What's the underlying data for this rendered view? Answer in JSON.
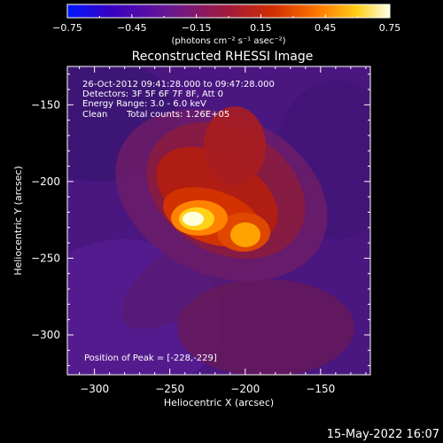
{
  "chart_data": {
    "type": "heatmap",
    "title": "Reconstructed RHESSI Image",
    "xlabel": "Heliocentric X (arcsec)",
    "ylabel": "Heliocentric Y (arcsec)",
    "xlim": [
      -318,
      -117
    ],
    "ylim": [
      -326,
      -125
    ],
    "x_ticks": [
      -300,
      -250,
      -200,
      -150
    ],
    "y_ticks": [
      -150,
      -200,
      -250,
      -300
    ],
    "colorbar": {
      "range": [
        -0.75,
        0.75
      ],
      "ticks": [
        -0.75,
        -0.45,
        -0.15,
        0.15,
        0.45,
        0.75
      ],
      "unit_label": "(photons cm⁻² s⁻¹ asec⁻²)",
      "colormap": [
        "#0018ff",
        "#3a00c0",
        "#6a1890",
        "#a21a3a",
        "#d22e00",
        "#ff7a00",
        "#ffd01a",
        "#ffffe8"
      ]
    },
    "annotations": {
      "time_range": "26-Oct-2012 09:41:28.000 to 09:47:28.000",
      "detectors": "Detectors: 3F 5F 6F 7F 8F, Att 0",
      "energy": "Energy Range: 3.0 - 6.0 keV",
      "method": "Clean",
      "counts": "Total counts: 1.26E+05",
      "peak": "Position of Peak = [-228,-229]"
    },
    "peak": [
      -228,
      -229
    ]
  },
  "footer_timestamp": "15-May-2022 16:07"
}
